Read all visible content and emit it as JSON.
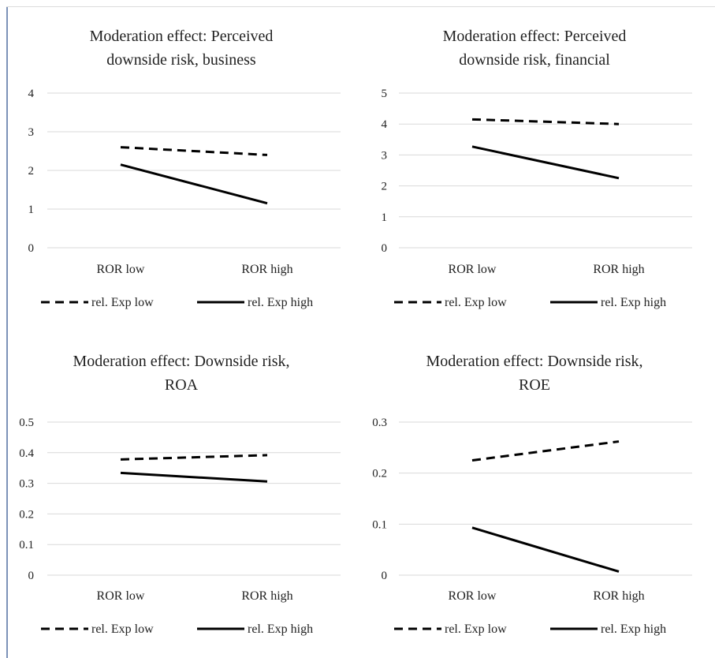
{
  "chart_data": [
    {
      "type": "line",
      "title": [
        "Moderation effect: Perceived",
        "downside risk, business"
      ],
      "categories": [
        "ROR low",
        "ROR high"
      ],
      "ylim": [
        0,
        4
      ],
      "yticks": [
        "0",
        "1",
        "2",
        "3",
        "4"
      ],
      "grid": true,
      "legend_position": "bottom",
      "series": [
        {
          "name": "rel. Exp low",
          "style": "dashed",
          "values": [
            2.6,
            2.4
          ]
        },
        {
          "name": "rel. Exp high",
          "style": "solid",
          "values": [
            2.15,
            1.15
          ]
        }
      ]
    },
    {
      "type": "line",
      "title": [
        "Moderation effect: Perceived",
        "downside risk, financial"
      ],
      "categories": [
        "ROR low",
        "ROR high"
      ],
      "ylim": [
        0,
        5
      ],
      "yticks": [
        "0",
        "1",
        "2",
        "3",
        "4",
        "5"
      ],
      "grid": true,
      "legend_position": "bottom",
      "series": [
        {
          "name": "rel. Exp low",
          "style": "dashed",
          "values": [
            4.15,
            4.0
          ]
        },
        {
          "name": "rel. Exp high",
          "style": "solid",
          "values": [
            3.27,
            2.25
          ]
        }
      ]
    },
    {
      "type": "line",
      "title": [
        "Moderation effect: Downside risk,",
        "ROA"
      ],
      "categories": [
        "ROR low",
        "ROR high"
      ],
      "ylim": [
        0,
        0.5
      ],
      "yticks": [
        "0",
        "0.1",
        "0.2",
        "0.3",
        "0.4",
        "0.5"
      ],
      "grid": true,
      "legend_position": "bottom",
      "series": [
        {
          "name": "rel. Exp low",
          "style": "dashed",
          "values": [
            0.378,
            0.392
          ]
        },
        {
          "name": "rel. Exp high",
          "style": "solid",
          "values": [
            0.334,
            0.306
          ]
        }
      ]
    },
    {
      "type": "line",
      "title": [
        "Moderation effect: Downside risk,",
        "ROE"
      ],
      "categories": [
        "ROR low",
        "ROR high"
      ],
      "ylim": [
        0,
        0.3
      ],
      "yticks": [
        "0",
        "0.1",
        "0.2",
        "0.3"
      ],
      "grid": true,
      "legend_position": "bottom",
      "series": [
        {
          "name": "rel. Exp low",
          "style": "dashed",
          "values": [
            0.225,
            0.262
          ]
        },
        {
          "name": "rel. Exp high",
          "style": "solid",
          "values": [
            0.093,
            0.007
          ]
        }
      ]
    }
  ],
  "colors": {
    "line": "#000000",
    "grid": "#d9d9d9",
    "text": "#222222"
  }
}
